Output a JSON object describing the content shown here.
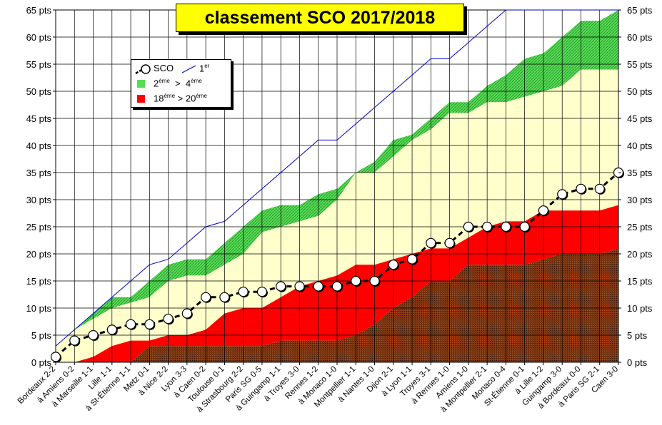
{
  "title": "classement SCO 2017/2018",
  "legend": {
    "sco": "SCO",
    "first": "1",
    "first_sup": "er",
    "second": "2",
    "second_sup": "ème",
    "gt1": ">",
    "fourth": "4",
    "fourth_sup": "ème",
    "eighteenth": "18",
    "eighteenth_sup": "ème",
    "gt2": ">",
    "twentieth": "20",
    "twentieth_sup": "ème"
  },
  "colors": {
    "green": "#55dd55",
    "cream": "#ffffcc",
    "red": "#ff0000",
    "brown": "#7a3511",
    "first_line": "#0000cc",
    "title_bg": "#ffff00"
  },
  "chart_data": {
    "type": "area",
    "title": "classement SCO 2017/2018",
    "y_unit": "pts",
    "ylim": [
      0,
      65
    ],
    "yticks": [
      0,
      5,
      10,
      15,
      20,
      25,
      30,
      35,
      40,
      45,
      50,
      55,
      60,
      65
    ],
    "ytick_labels": [
      "0 pts",
      "5 pts",
      "10 pts",
      "15 pts",
      "20 pts",
      "25 pts",
      "30 pts",
      "35 pts",
      "40 pts",
      "45 pts",
      "50 pts",
      "55 pts",
      "60 pts",
      "65 pts"
    ],
    "grid": true,
    "categories": [
      "Bordeaux 2-2",
      "à Amiens 0-2",
      "à Marseille 1-1",
      "Lille 1-1",
      "à St-Étienne 1-1",
      "Metz 0-1",
      "à Nice 2-2",
      "Lyon 3-3",
      "à Caen 0-2",
      "Toulouse 0-1",
      "à Strasbourg 2-2",
      "Paris SG 0-5",
      "à Guingamp 1-1",
      "à Troyes 3-0",
      "Rennes 1-2",
      "à Monaco 1-0",
      "Montpellier 1-1",
      "à Nantes 1-0",
      "Dijon 2-1",
      "à Lyon 1-1",
      "Troyes 3-1",
      "à Rennes 1-0",
      "Amiens 1-0",
      "à Montpellier 2-1",
      "Monaco 0-4",
      "St-Étienne 0-1",
      "à Lille 1-2",
      "Guingamp 3-0",
      "à Bordeaux 0-0",
      "à Paris SG 2-1",
      "Caen 3-0"
    ],
    "series": [
      {
        "name": "SCO",
        "values": [
          1,
          4,
          5,
          6,
          7,
          7,
          8,
          9,
          12,
          12,
          13,
          13,
          14,
          14,
          14,
          14,
          15,
          15,
          18,
          19,
          22,
          22,
          25,
          25,
          25,
          25,
          28,
          31,
          32,
          32,
          35
        ]
      },
      {
        "name": "1er",
        "values": [
          3,
          6,
          9,
          12,
          15,
          18,
          19,
          22,
          25,
          26,
          29,
          32,
          35,
          38,
          41,
          41,
          44,
          47,
          50,
          53,
          56,
          56,
          59,
          62,
          65,
          65,
          65,
          65,
          65,
          65,
          65
        ]
      },
      {
        "name": "2ème",
        "values": [
          3,
          6,
          9,
          12,
          12,
          15,
          18,
          19,
          19,
          22,
          25,
          28,
          29,
          29,
          31,
          32,
          35,
          37,
          41,
          42,
          45,
          48,
          48,
          51,
          53,
          56,
          57,
          60,
          63,
          63,
          66
        ]
      },
      {
        "name": "4ème",
        "values": [
          3,
          6,
          8,
          10,
          11,
          12,
          15,
          16,
          16,
          18,
          20,
          24,
          25,
          26,
          27,
          30,
          35,
          35,
          38,
          41,
          43,
          46,
          46,
          48,
          48,
          49,
          50,
          51,
          54,
          54,
          54
        ]
      },
      {
        "name": "18ème",
        "values": [
          0,
          0,
          1,
          3,
          4,
          4,
          5,
          5,
          6,
          9,
          10,
          10,
          12,
          14,
          15,
          16,
          18,
          18,
          19,
          20,
          21,
          21,
          23,
          25,
          26,
          26,
          28,
          28,
          28,
          28,
          29
        ]
      },
      {
        "name": "20ème",
        "values": [
          0,
          0,
          0,
          0,
          0,
          3,
          3,
          3,
          3,
          3,
          3,
          3,
          4,
          4,
          4,
          4,
          5,
          7,
          10,
          12,
          15,
          15,
          18,
          18,
          18,
          18,
          19,
          20,
          20,
          20,
          21
        ]
      }
    ]
  }
}
